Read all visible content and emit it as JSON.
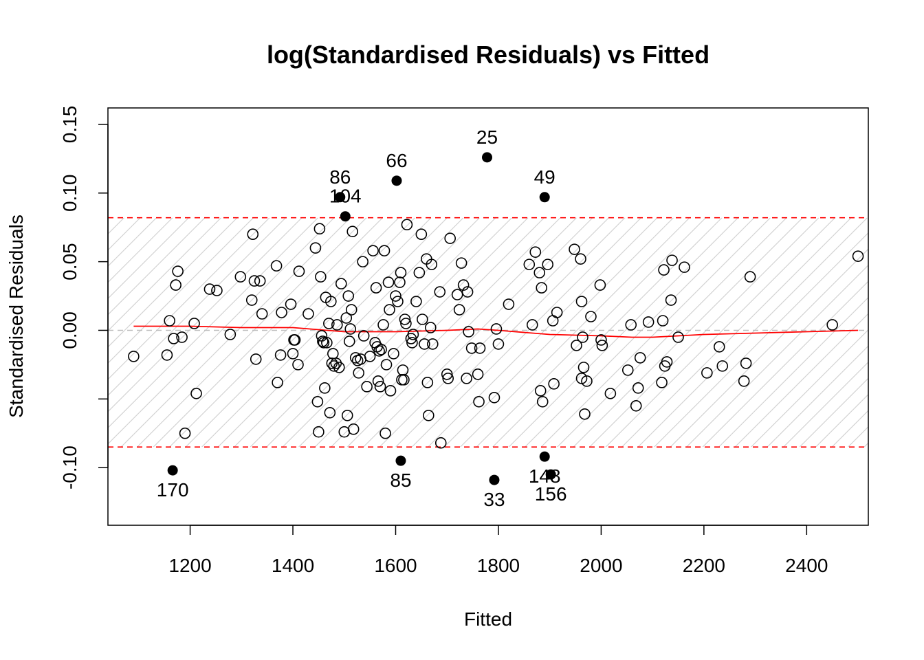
{
  "chart_data": {
    "type": "scatter",
    "title": "log(Standardised Residuals) vs Fitted",
    "xlabel": "Fitted",
    "ylabel": "Standardised Residuals",
    "xlim": [
      1040,
      2520
    ],
    "ylim": [
      -0.142,
      0.162
    ],
    "xticks": [
      1200,
      1400,
      1600,
      1800,
      2000,
      2200,
      2400
    ],
    "yticks": [
      -0.1,
      -0.05,
      0.0,
      0.05,
      0.1,
      0.15
    ],
    "ytick_labels": [
      "-0.10",
      "",
      "0.00",
      "0.05",
      "0.10",
      "0.15"
    ],
    "colors": {
      "smooth": "#ff0000",
      "threshold": "#ff0000",
      "zero_line": "#bebebe",
      "hatch": "#d3d3d3",
      "points": "#000000"
    },
    "threshold_band": [
      -0.085,
      0.082
    ],
    "zero_line": 0,
    "points": [
      [
        1090,
        -0.019
      ],
      [
        1155,
        -0.018
      ],
      [
        1160,
        0.007
      ],
      [
        1168,
        -0.006
      ],
      [
        1172,
        0.033
      ],
      [
        1176,
        0.043
      ],
      [
        1184,
        -0.005
      ],
      [
        1190,
        -0.075
      ],
      [
        1208,
        0.005
      ],
      [
        1212,
        -0.046
      ],
      [
        1238,
        0.03
      ],
      [
        1252,
        0.029
      ],
      [
        1278,
        -0.003
      ],
      [
        1298,
        0.039
      ],
      [
        1320,
        0.022
      ],
      [
        1322,
        0.07
      ],
      [
        1325,
        0.036
      ],
      [
        1328,
        -0.021
      ],
      [
        1336,
        0.036
      ],
      [
        1340,
        0.012
      ],
      [
        1368,
        0.047
      ],
      [
        1370,
        -0.038
      ],
      [
        1376,
        -0.018
      ],
      [
        1378,
        0.013
      ],
      [
        1396,
        0.019
      ],
      [
        1400,
        -0.017
      ],
      [
        1402,
        -0.007
      ],
      [
        1404,
        -0.007
      ],
      [
        1410,
        -0.025
      ],
      [
        1412,
        0.043
      ],
      [
        1430,
        0.012
      ],
      [
        1444,
        0.06
      ],
      [
        1448,
        -0.052
      ],
      [
        1450,
        -0.074
      ],
      [
        1452,
        0.074
      ],
      [
        1454,
        0.039
      ],
      [
        1456,
        -0.004
      ],
      [
        1458,
        -0.008
      ],
      [
        1460,
        -0.009
      ],
      [
        1462,
        -0.042
      ],
      [
        1464,
        0.024
      ],
      [
        1466,
        -0.009
      ],
      [
        1470,
        0.005
      ],
      [
        1472,
        -0.06
      ],
      [
        1474,
        0.021
      ],
      [
        1476,
        -0.024
      ],
      [
        1478,
        -0.017
      ],
      [
        1480,
        -0.026
      ],
      [
        1484,
        -0.024
      ],
      [
        1486,
        0.004
      ],
      [
        1490,
        -0.027
      ],
      [
        1494,
        0.034
      ],
      [
        1500,
        -0.074
      ],
      [
        1504,
        0.009
      ],
      [
        1506,
        -0.062
      ],
      [
        1508,
        0.025
      ],
      [
        1510,
        -0.008
      ],
      [
        1512,
        0.001
      ],
      [
        1514,
        0.015
      ],
      [
        1516,
        0.072
      ],
      [
        1518,
        -0.072
      ],
      [
        1522,
        -0.02
      ],
      [
        1526,
        -0.022
      ],
      [
        1528,
        -0.031
      ],
      [
        1532,
        -0.021
      ],
      [
        1536,
        0.05
      ],
      [
        1538,
        -0.004
      ],
      [
        1544,
        -0.041
      ],
      [
        1550,
        -0.019
      ],
      [
        1556,
        0.058
      ],
      [
        1560,
        -0.009
      ],
      [
        1562,
        0.031
      ],
      [
        1564,
        -0.012
      ],
      [
        1566,
        -0.037
      ],
      [
        1568,
        -0.015
      ],
      [
        1570,
        -0.041
      ],
      [
        1572,
        -0.014
      ],
      [
        1576,
        0.004
      ],
      [
        1578,
        0.058
      ],
      [
        1580,
        -0.075
      ],
      [
        1582,
        -0.025
      ],
      [
        1586,
        0.035
      ],
      [
        1588,
        0.015
      ],
      [
        1590,
        -0.044
      ],
      [
        1596,
        -0.017
      ],
      [
        1600,
        0.025
      ],
      [
        1604,
        0.021
      ],
      [
        1608,
        0.035
      ],
      [
        1610,
        0.042
      ],
      [
        1612,
        -0.036
      ],
      [
        1614,
        -0.029
      ],
      [
        1616,
        -0.036
      ],
      [
        1618,
        0.008
      ],
      [
        1620,
        0.005
      ],
      [
        1622,
        0.077
      ],
      [
        1630,
        -0.006
      ],
      [
        1632,
        -0.009
      ],
      [
        1634,
        -0.003
      ],
      [
        1640,
        0.021
      ],
      [
        1646,
        0.042
      ],
      [
        1650,
        0.07
      ],
      [
        1652,
        0.008
      ],
      [
        1656,
        -0.01
      ],
      [
        1660,
        0.052
      ],
      [
        1662,
        -0.038
      ],
      [
        1664,
        -0.062
      ],
      [
        1668,
        0.002
      ],
      [
        1670,
        0.048
      ],
      [
        1672,
        -0.01
      ],
      [
        1686,
        0.028
      ],
      [
        1688,
        -0.082
      ],
      [
        1700,
        -0.032
      ],
      [
        1702,
        -0.035
      ],
      [
        1706,
        0.067
      ],
      [
        1720,
        0.026
      ],
      [
        1724,
        0.015
      ],
      [
        1728,
        0.049
      ],
      [
        1732,
        0.033
      ],
      [
        1738,
        -0.035
      ],
      [
        1740,
        0.028
      ],
      [
        1742,
        -0.001
      ],
      [
        1748,
        -0.013
      ],
      [
        1760,
        -0.032
      ],
      [
        1762,
        -0.052
      ],
      [
        1764,
        -0.013
      ],
      [
        1792,
        -0.049
      ],
      [
        1796,
        0.001
      ],
      [
        1800,
        -0.01
      ],
      [
        1820,
        0.019
      ],
      [
        1860,
        0.048
      ],
      [
        1866,
        0.004
      ],
      [
        1872,
        0.057
      ],
      [
        1880,
        0.042
      ],
      [
        1882,
        -0.044
      ],
      [
        1884,
        0.031
      ],
      [
        1886,
        -0.052
      ],
      [
        1896,
        0.048
      ],
      [
        1906,
        0.007
      ],
      [
        1908,
        -0.039
      ],
      [
        1914,
        0.013
      ],
      [
        1948,
        0.059
      ],
      [
        1952,
        -0.011
      ],
      [
        1960,
        0.052
      ],
      [
        1962,
        0.021
      ],
      [
        1962,
        -0.035
      ],
      [
        1964,
        -0.005
      ],
      [
        1966,
        -0.027
      ],
      [
        1968,
        -0.061
      ],
      [
        1972,
        -0.037
      ],
      [
        1980,
        0.01
      ],
      [
        1998,
        0.033
      ],
      [
        2000,
        -0.007
      ],
      [
        2002,
        -0.011
      ],
      [
        2018,
        -0.046
      ],
      [
        2052,
        -0.029
      ],
      [
        2058,
        0.004
      ],
      [
        2068,
        -0.055
      ],
      [
        2072,
        -0.042
      ],
      [
        2076,
        -0.02
      ],
      [
        2092,
        0.006
      ],
      [
        2118,
        -0.038
      ],
      [
        2120,
        0.007
      ],
      [
        2122,
        0.044
      ],
      [
        2124,
        -0.026
      ],
      [
        2128,
        -0.023
      ],
      [
        2136,
        0.022
      ],
      [
        2138,
        0.051
      ],
      [
        2150,
        -0.005
      ],
      [
        2162,
        0.046
      ],
      [
        2206,
        -0.031
      ],
      [
        2230,
        -0.012
      ],
      [
        2236,
        -0.026
      ],
      [
        2278,
        -0.037
      ],
      [
        2282,
        -0.024
      ],
      [
        2290,
        0.039
      ],
      [
        2450,
        0.004
      ],
      [
        2500,
        0.054
      ]
    ],
    "outliers": [
      {
        "label": "25",
        "x": 1778,
        "y": 0.126,
        "label_pos": "above"
      },
      {
        "label": "66",
        "x": 1602,
        "y": 0.109,
        "label_pos": "above"
      },
      {
        "label": "86",
        "x": 1492,
        "y": 0.097,
        "label_pos": "above"
      },
      {
        "label": "49",
        "x": 1890,
        "y": 0.097,
        "label_pos": "above"
      },
      {
        "label": "104",
        "x": 1502,
        "y": 0.083,
        "label_pos": "above"
      },
      {
        "label": "170",
        "x": 1166,
        "y": -0.102,
        "label_pos": "below"
      },
      {
        "label": "85",
        "x": 1610,
        "y": -0.095,
        "label_pos": "below"
      },
      {
        "label": "33",
        "x": 1792,
        "y": -0.109,
        "label_pos": "below"
      },
      {
        "label": "148",
        "x": 1890,
        "y": -0.092,
        "label_pos": "below"
      },
      {
        "label": "156",
        "x": 1902,
        "y": -0.105,
        "label_pos": "below"
      }
    ],
    "smooth": [
      [
        1090,
        0.003
      ],
      [
        1200,
        0.003
      ],
      [
        1300,
        0.002
      ],
      [
        1400,
        0.002
      ],
      [
        1500,
        -0.001
      ],
      [
        1600,
        -0.001
      ],
      [
        1700,
        0.0
      ],
      [
        1760,
        0.001
      ],
      [
        1800,
        0.0
      ],
      [
        1900,
        -0.003
      ],
      [
        2000,
        -0.004
      ],
      [
        2060,
        -0.005
      ],
      [
        2100,
        -0.005
      ],
      [
        2200,
        -0.003
      ],
      [
        2300,
        -0.002
      ],
      [
        2400,
        -0.001
      ],
      [
        2500,
        0.0
      ]
    ]
  }
}
